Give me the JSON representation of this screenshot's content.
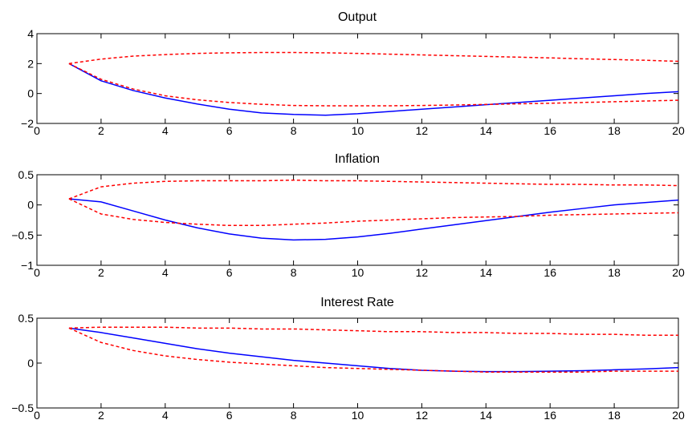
{
  "chart_data": [
    {
      "type": "line",
      "title": "Output",
      "xlabel": "",
      "ylabel": "",
      "xlim": [
        0,
        20
      ],
      "ylim": [
        -2,
        4
      ],
      "xticks": [
        0,
        2,
        4,
        6,
        8,
        10,
        12,
        14,
        16,
        18,
        20
      ],
      "yticks": [
        -2,
        0,
        2,
        4
      ],
      "ytick_labels": [
        "−2",
        "0",
        "2",
        "4"
      ],
      "grid": false,
      "x": [
        1,
        2,
        3,
        4,
        5,
        6,
        7,
        8,
        9,
        10,
        11,
        12,
        13,
        14,
        15,
        16,
        17,
        18,
        19,
        20
      ],
      "series": [
        {
          "role": "response",
          "color": "#0000ff",
          "style": "solid",
          "values": [
            2.0,
            0.85,
            0.2,
            -0.3,
            -0.7,
            -1.05,
            -1.3,
            -1.4,
            -1.45,
            -1.35,
            -1.2,
            -1.05,
            -0.9,
            -0.75,
            -0.6,
            -0.45,
            -0.3,
            -0.15,
            0.0,
            0.12
          ]
        },
        {
          "role": "upper-band",
          "color": "#ff0000",
          "style": "dashed",
          "values": [
            2.0,
            2.3,
            2.5,
            2.6,
            2.68,
            2.72,
            2.74,
            2.74,
            2.72,
            2.68,
            2.63,
            2.58,
            2.53,
            2.48,
            2.43,
            2.38,
            2.32,
            2.27,
            2.22,
            2.15
          ]
        },
        {
          "role": "lower-band",
          "color": "#ff0000",
          "style": "dashed",
          "values": [
            2.0,
            0.95,
            0.3,
            -0.15,
            -0.42,
            -0.6,
            -0.72,
            -0.8,
            -0.82,
            -0.82,
            -0.82,
            -0.8,
            -0.77,
            -0.73,
            -0.69,
            -0.65,
            -0.6,
            -0.55,
            -0.5,
            -0.45
          ]
        }
      ]
    },
    {
      "type": "line",
      "title": "Inflation",
      "xlabel": "",
      "ylabel": "",
      "xlim": [
        0,
        20
      ],
      "ylim": [
        -1,
        0.5
      ],
      "xticks": [
        0,
        2,
        4,
        6,
        8,
        10,
        12,
        14,
        16,
        18,
        20
      ],
      "yticks": [
        -1,
        -0.5,
        0,
        0.5
      ],
      "ytick_labels": [
        "−1",
        "−0.5",
        "0",
        "0.5"
      ],
      "grid": false,
      "x": [
        1,
        2,
        3,
        4,
        5,
        6,
        7,
        8,
        9,
        10,
        11,
        12,
        13,
        14,
        15,
        16,
        17,
        18,
        19,
        20
      ],
      "series": [
        {
          "role": "response",
          "color": "#0000ff",
          "style": "solid",
          "values": [
            0.1,
            0.05,
            -0.1,
            -0.25,
            -0.38,
            -0.48,
            -0.55,
            -0.58,
            -0.57,
            -0.53,
            -0.47,
            -0.4,
            -0.33,
            -0.26,
            -0.19,
            -0.12,
            -0.06,
            0.0,
            0.04,
            0.08
          ]
        },
        {
          "role": "upper-band",
          "color": "#ff0000",
          "style": "dashed",
          "values": [
            0.1,
            0.3,
            0.36,
            0.39,
            0.4,
            0.4,
            0.4,
            0.41,
            0.4,
            0.4,
            0.39,
            0.38,
            0.37,
            0.36,
            0.35,
            0.34,
            0.34,
            0.33,
            0.33,
            0.32
          ]
        },
        {
          "role": "lower-band",
          "color": "#ff0000",
          "style": "dashed",
          "values": [
            0.1,
            -0.15,
            -0.24,
            -0.29,
            -0.32,
            -0.34,
            -0.34,
            -0.32,
            -0.3,
            -0.27,
            -0.25,
            -0.23,
            -0.21,
            -0.2,
            -0.19,
            -0.17,
            -0.16,
            -0.15,
            -0.14,
            -0.13
          ]
        }
      ]
    },
    {
      "type": "line",
      "title": "Interest Rate",
      "xlabel": "",
      "ylabel": "",
      "xlim": [
        0,
        20
      ],
      "ylim": [
        -0.5,
        0.5
      ],
      "xticks": [
        0,
        2,
        4,
        6,
        8,
        10,
        12,
        14,
        16,
        18,
        20
      ],
      "yticks": [
        -0.5,
        0,
        0.5
      ],
      "ytick_labels": [
        "−0.5",
        "0",
        "0.5"
      ],
      "grid": false,
      "x": [
        1,
        2,
        3,
        4,
        5,
        6,
        7,
        8,
        9,
        10,
        11,
        12,
        13,
        14,
        15,
        16,
        17,
        18,
        19,
        20
      ],
      "series": [
        {
          "role": "response",
          "color": "#0000ff",
          "style": "solid",
          "values": [
            0.39,
            0.34,
            0.28,
            0.22,
            0.16,
            0.11,
            0.07,
            0.03,
            0.0,
            -0.03,
            -0.06,
            -0.08,
            -0.09,
            -0.095,
            -0.095,
            -0.09,
            -0.085,
            -0.075,
            -0.065,
            -0.05
          ]
        },
        {
          "role": "upper-band",
          "color": "#ff0000",
          "style": "dashed",
          "values": [
            0.39,
            0.4,
            0.4,
            0.4,
            0.39,
            0.39,
            0.38,
            0.38,
            0.37,
            0.36,
            0.35,
            0.35,
            0.34,
            0.34,
            0.33,
            0.33,
            0.32,
            0.32,
            0.31,
            0.31
          ]
        },
        {
          "role": "lower-band",
          "color": "#ff0000",
          "style": "dashed",
          "values": [
            0.39,
            0.23,
            0.14,
            0.08,
            0.04,
            0.01,
            -0.01,
            -0.03,
            -0.05,
            -0.06,
            -0.07,
            -0.08,
            -0.09,
            -0.1,
            -0.1,
            -0.1,
            -0.1,
            -0.09,
            -0.09,
            -0.09
          ]
        }
      ]
    }
  ]
}
